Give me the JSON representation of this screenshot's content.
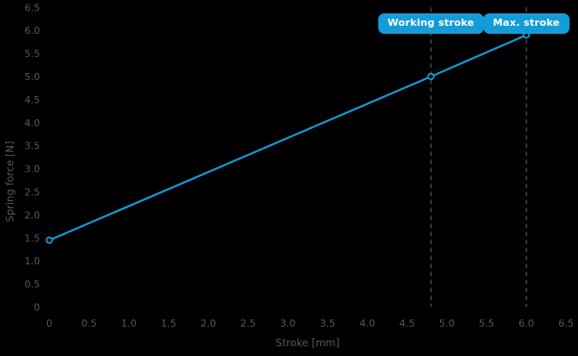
{
  "colors": {
    "background": "#000000",
    "accent_blue": "#149cd8",
    "axis_text_gray": "#58585a",
    "dash_gray": "#4d4d4d",
    "marker_fill": "#000000",
    "badge_text": "#ffffff"
  },
  "chart_data": {
    "type": "line",
    "title": "",
    "xlabel": "Stroke [mm]",
    "ylabel": "Spring force [N]",
    "xlim": [
      0,
      6.5
    ],
    "ylim": [
      0,
      6.5
    ],
    "xtick_labels": [
      "0",
      "0.5",
      "1.0",
      "1.5",
      "2.0",
      "2.5",
      "3.0",
      "3.5",
      "4.0",
      "4.5",
      "5.0",
      "5.5",
      "6.0",
      "6.5"
    ],
    "ytick_labels": [
      "0",
      "0.5",
      "1.0",
      "1.5",
      "2.0",
      "2.5",
      "3.0",
      "3.5",
      "4.0",
      "4.5",
      "5.0",
      "5.5",
      "6.0",
      "6.5"
    ],
    "grid": false,
    "legend": null,
    "series": [
      {
        "name": "spring-force-line",
        "x": [
          0,
          4.8,
          6.0
        ],
        "y": [
          1.45,
          5.0,
          5.9
        ],
        "color": "#149cd8",
        "marker": "circle-open"
      }
    ],
    "annotations": [
      {
        "label": "Working stroke",
        "x": 4.8
      },
      {
        "label": "Max. stroke",
        "x": 6.0
      }
    ]
  }
}
